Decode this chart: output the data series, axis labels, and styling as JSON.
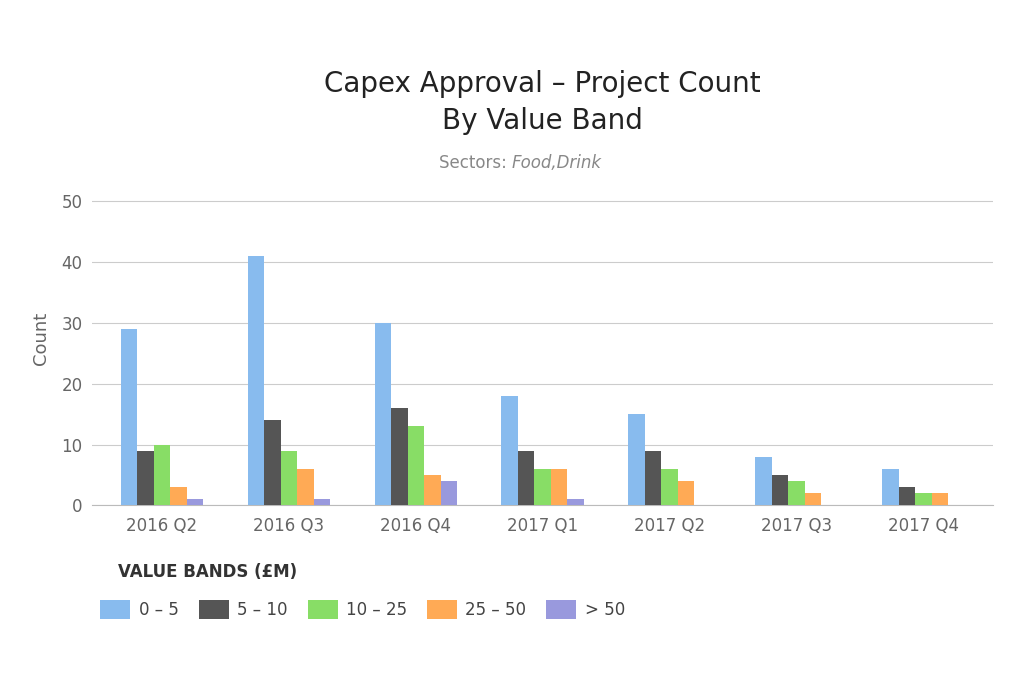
{
  "title_line1": "Capex Approval – Project Count",
  "title_line2": "By Value Band",
  "subtitle_prefix": "Sectors: ",
  "subtitle_italic": "Food,Drink",
  "quarters": [
    "2016 Q2",
    "2016 Q3",
    "2016 Q4",
    "2017 Q1",
    "2017 Q2",
    "2017 Q3",
    "2017 Q4"
  ],
  "bands": [
    "0 – 5",
    "5 – 10",
    "10 – 25",
    "25 – 50",
    "> 50"
  ],
  "colors": [
    "#88BBEE",
    "#555555",
    "#88DD66",
    "#FFAA55",
    "#9999DD"
  ],
  "values": {
    "0 – 5": [
      29,
      41,
      30,
      18,
      15,
      8,
      6
    ],
    "5 – 10": [
      9,
      14,
      16,
      9,
      9,
      5,
      3
    ],
    "10 – 25": [
      10,
      9,
      13,
      6,
      6,
      4,
      2
    ],
    "25 – 50": [
      3,
      6,
      5,
      6,
      4,
      2,
      2
    ],
    "> 50": [
      1,
      1,
      4,
      1,
      0,
      0,
      0
    ]
  },
  "ylabel": "Count",
  "legend_title": "VALUE BANDS (£M)",
  "ylim": [
    0,
    55
  ],
  "yticks": [
    0,
    10,
    20,
    30,
    40,
    50
  ],
  "background_color": "#FFFFFF",
  "grid_color": "#CCCCCC",
  "title_color": "#222222",
  "subtitle_color": "#888888",
  "tick_color": "#666666",
  "bar_width": 0.13
}
